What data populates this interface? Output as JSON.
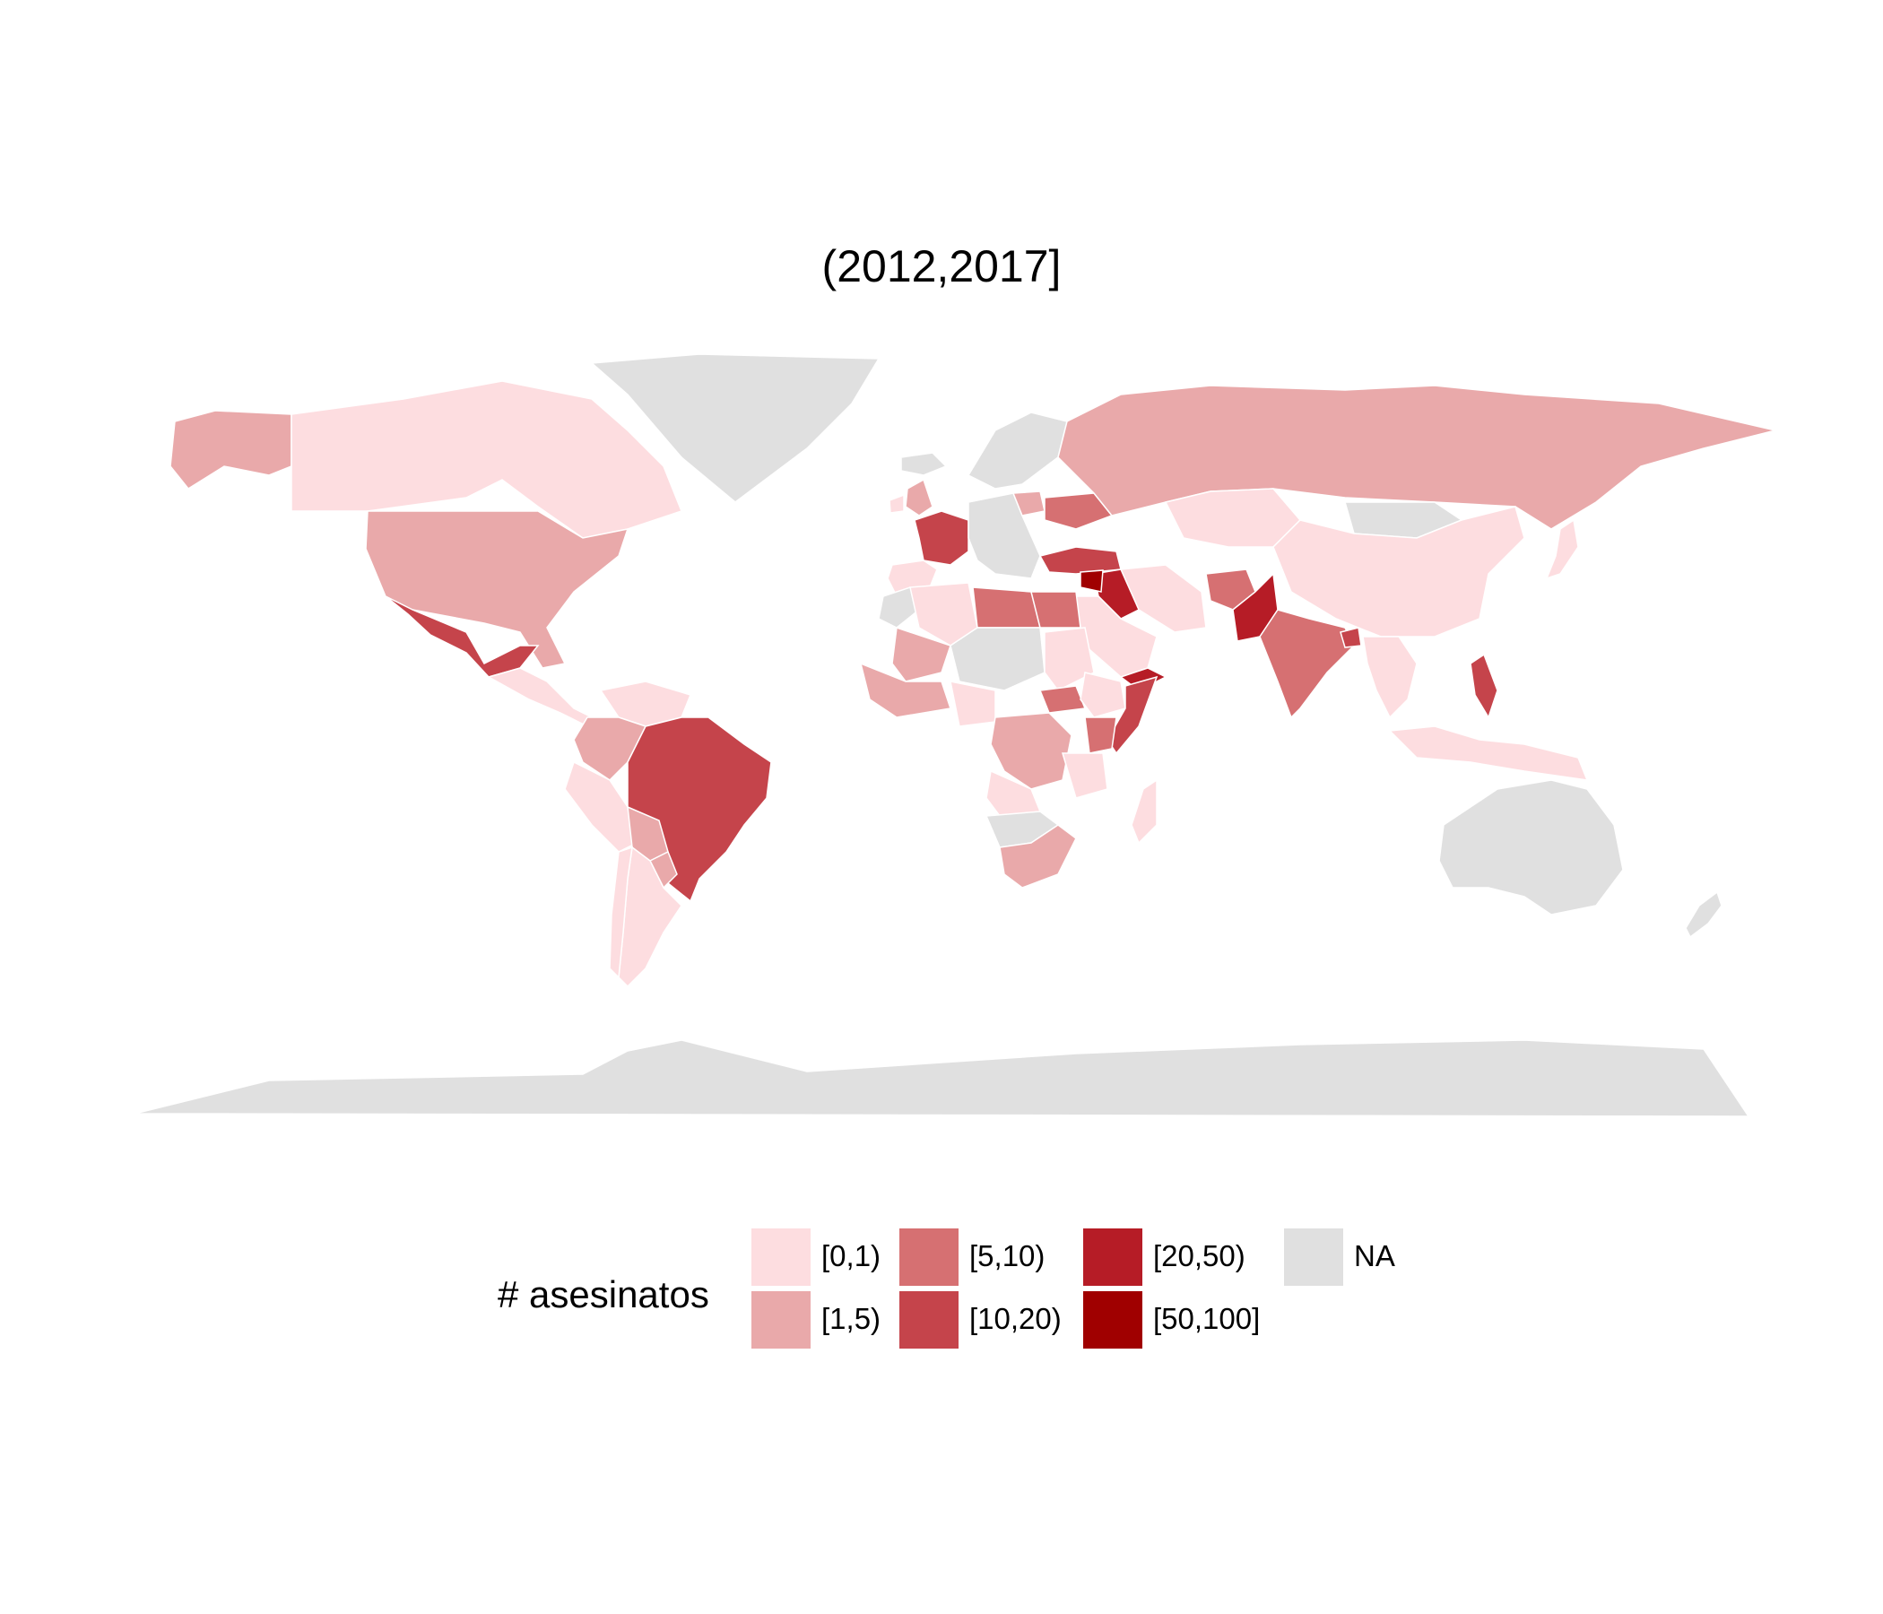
{
  "title": "(2012,2017]",
  "legend": {
    "title": "# asesinatos",
    "items": [
      {
        "key": "c0",
        "label": "[0,1)",
        "color": "#fddde0"
      },
      {
        "key": "c1",
        "label": "[1,5)",
        "color": "#e9a9aa"
      },
      {
        "key": "c2",
        "label": "[5,10)",
        "color": "#d67072"
      },
      {
        "key": "c3",
        "label": "[10,20)",
        "color": "#c5444b"
      },
      {
        "key": "c4",
        "label": "[20,50)",
        "color": "#b61c26"
      },
      {
        "key": "c5",
        "label": "[50,100]",
        "color": "#a00000"
      },
      {
        "key": "na",
        "label": "NA",
        "color": "#e0e0e0"
      }
    ]
  },
  "countries": {
    "canada": "c0",
    "alaska": "c1",
    "usa": "c1",
    "mexico": "c3",
    "central-america": "c0",
    "greenland": "na",
    "iceland": "na",
    "colombia": "c1",
    "venezuela": "c0",
    "peru": "c0",
    "brazil": "c3",
    "bolivia": "c1",
    "paraguay": "c1",
    "chile": "c0",
    "argentina": "c0",
    "uk": "c1",
    "ireland": "c0",
    "france": "c3",
    "spain": "c0",
    "scandinavia": "na",
    "central-europe": "na",
    "poland": "c1",
    "ukraine": "c2",
    "turkey": "c3",
    "syria": "c5",
    "iraq": "c4",
    "iran": "c0",
    "saudi-arabia": "c0",
    "yemen": "c4",
    "russia": "c1",
    "kazakhstan": "c0",
    "afghanistan": "c2",
    "pakistan": "c4",
    "india": "c2",
    "bangladesh": "c3",
    "china": "c0",
    "mongolia": "na",
    "japan": "c0",
    "southeast-asia": "c0",
    "philippines": "c3",
    "indonesia": "c0",
    "australia": "na",
    "new-zealand": "na",
    "antarctica": "na",
    "morocco": "na",
    "algeria": "c0",
    "libya": "c2",
    "egypt": "c2",
    "mali": "c1",
    "west-africa": "c1",
    "niger-chad": "na",
    "nigeria": "c0",
    "sudan": "c0",
    "ethiopia": "c0",
    "somalia": "c3",
    "south-sudan": "c2",
    "kenya": "c2",
    "drc": "c1",
    "tanzania": "c0",
    "angola": "c0",
    "namibia": "na",
    "south-africa": "c1",
    "madagascar": "c0"
  }
}
